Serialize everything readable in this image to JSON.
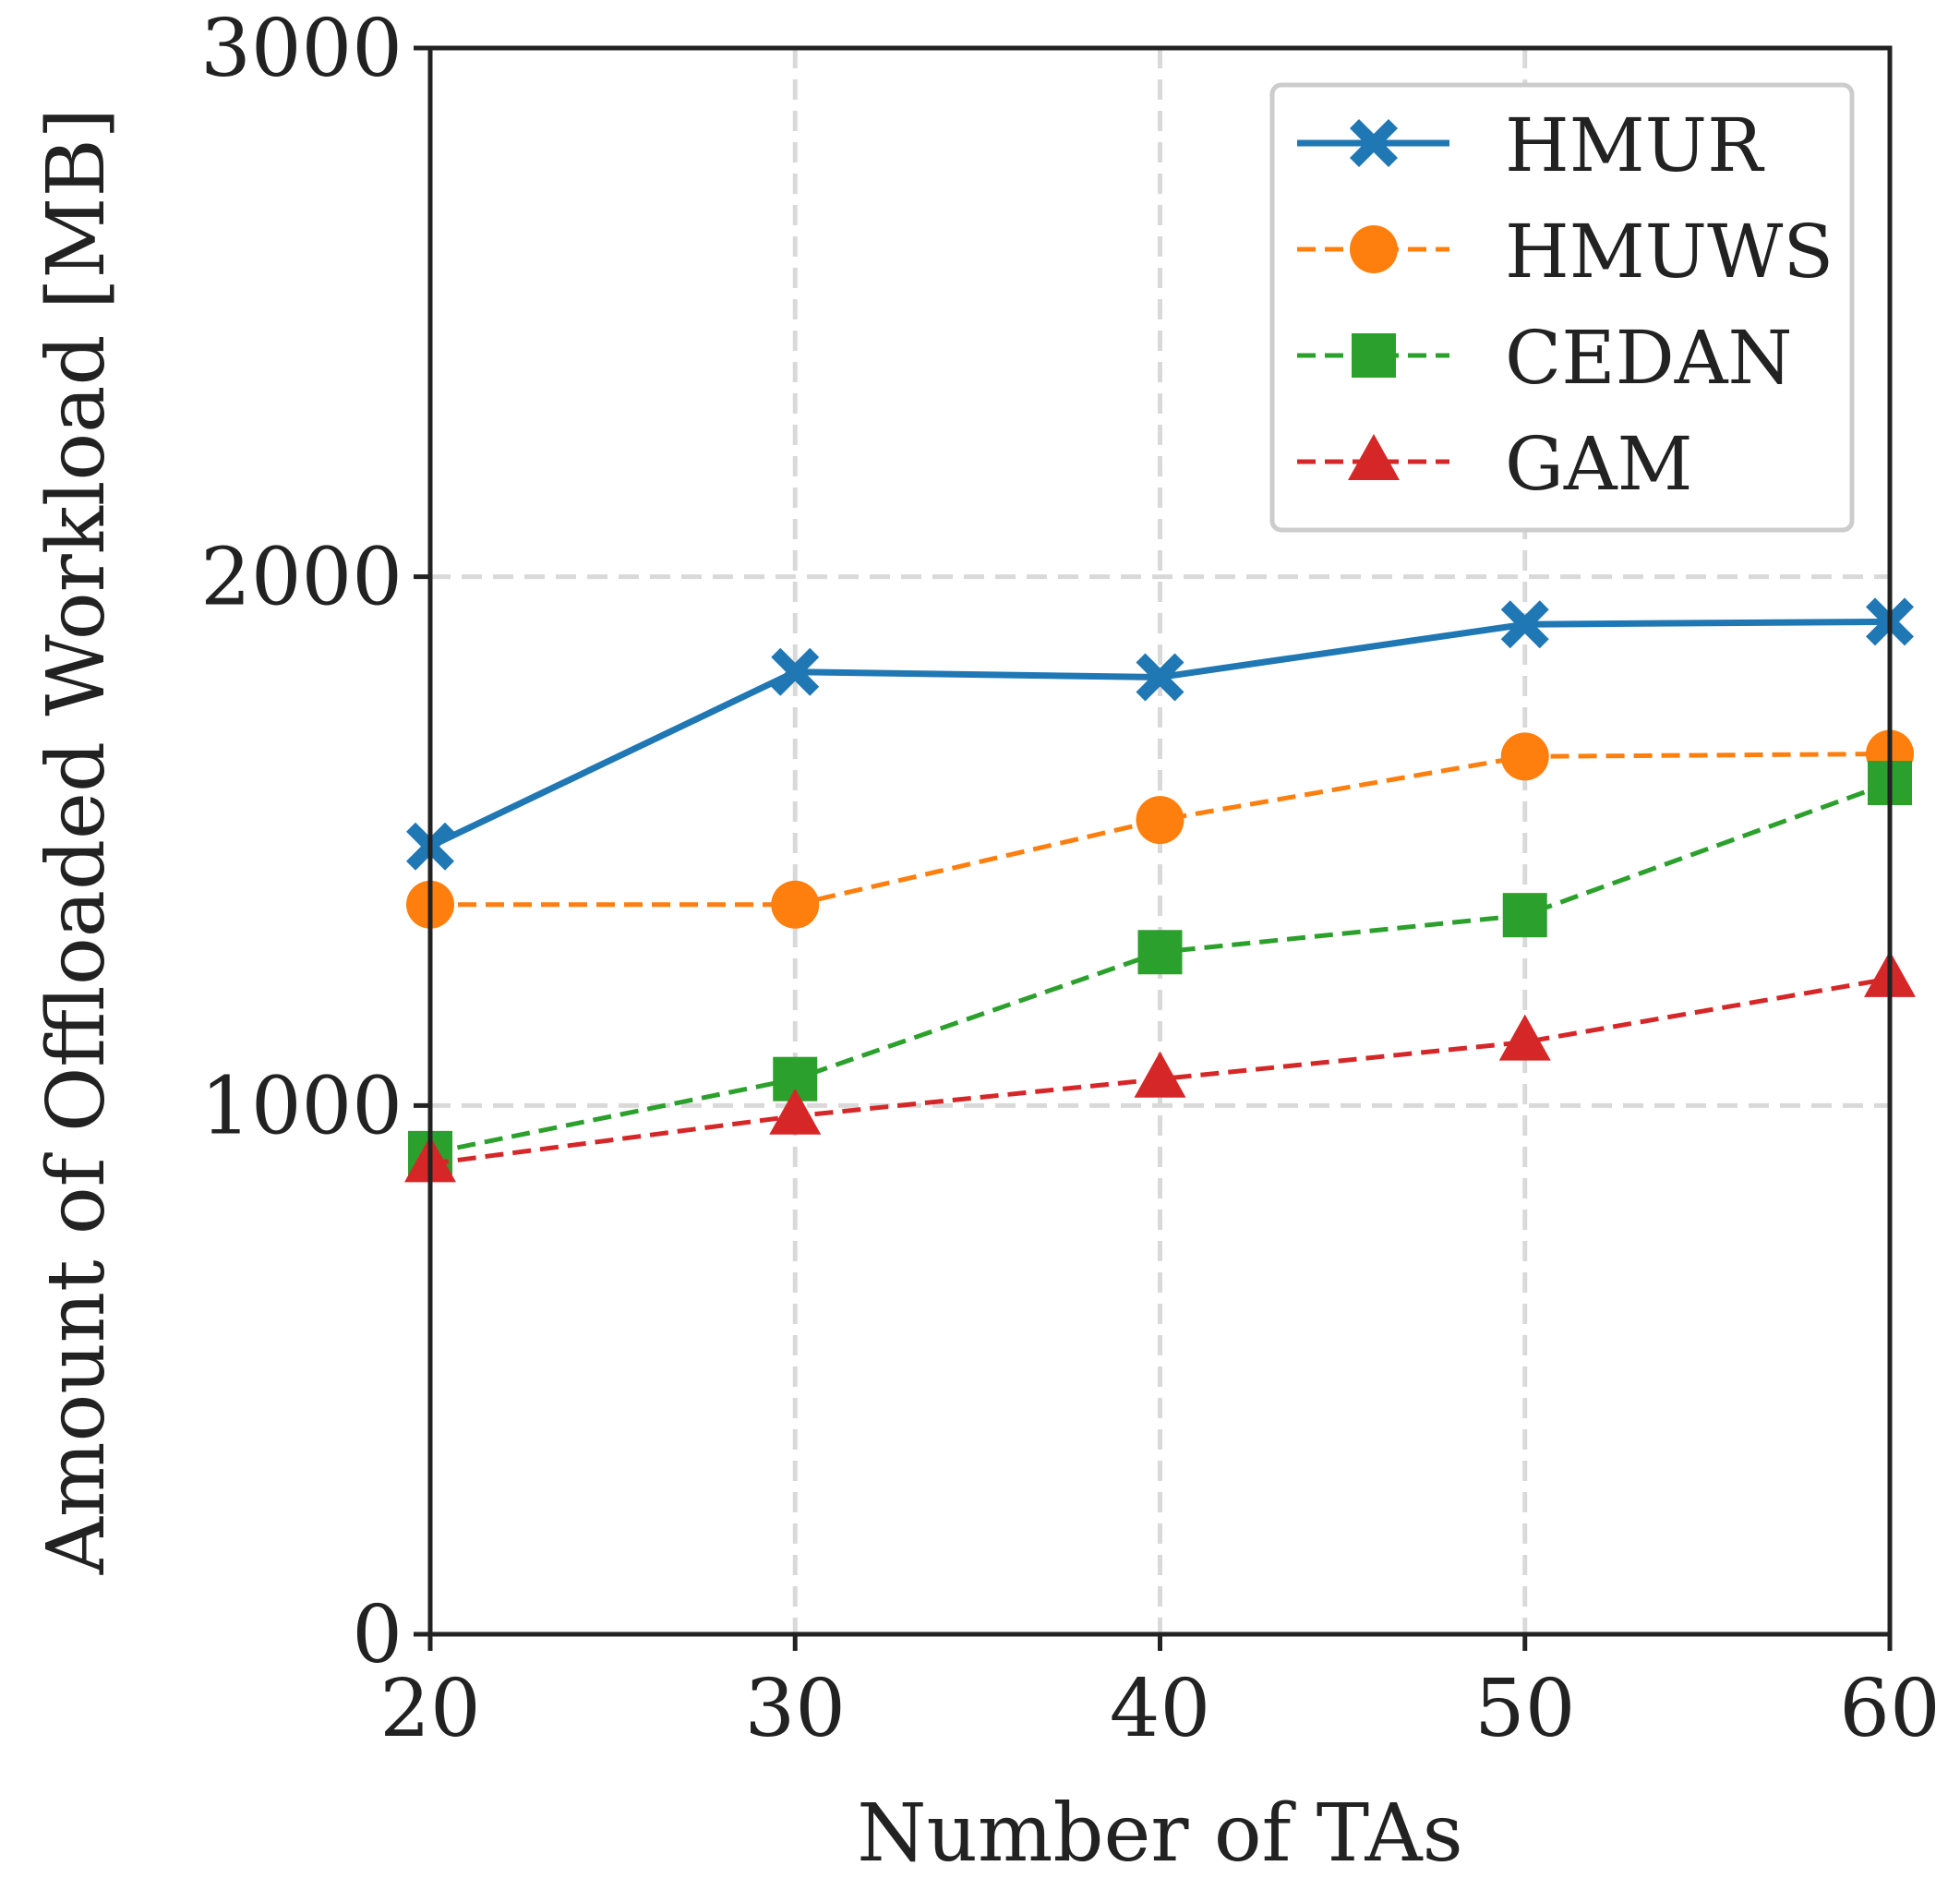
{
  "chart_data": {
    "type": "line",
    "title": "",
    "xlabel": "Number of TAs",
    "ylabel": "Amount of Offloaded Workload [MB]",
    "x": [
      20,
      30,
      40,
      50,
      60
    ],
    "xlim": [
      20,
      60
    ],
    "ylim": [
      0,
      3000
    ],
    "xticks": [
      20,
      30,
      40,
      50,
      60
    ],
    "yticks": [
      0,
      1000,
      2000,
      3000
    ],
    "grid": true,
    "legend_position": "top-right",
    "series": [
      {
        "name": "HMUR",
        "values": [
          1490,
          1820,
          1810,
          1910,
          1915
        ],
        "color": "#1f77b4",
        "marker": "X",
        "linestyle": "solid"
      },
      {
        "name": "HMUWS",
        "values": [
          1380,
          1380,
          1540,
          1660,
          1665
        ],
        "color": "#ff7f0e",
        "marker": "circle",
        "linestyle": "dashed"
      },
      {
        "name": "CEDAN",
        "values": [
          910,
          1050,
          1290,
          1360,
          1610
        ],
        "color": "#2ca02c",
        "marker": "square",
        "linestyle": "dashed"
      },
      {
        "name": "GAM",
        "values": [
          890,
          980,
          1050,
          1120,
          1240
        ],
        "color": "#d62728",
        "marker": "triangle",
        "linestyle": "dashed"
      }
    ]
  }
}
